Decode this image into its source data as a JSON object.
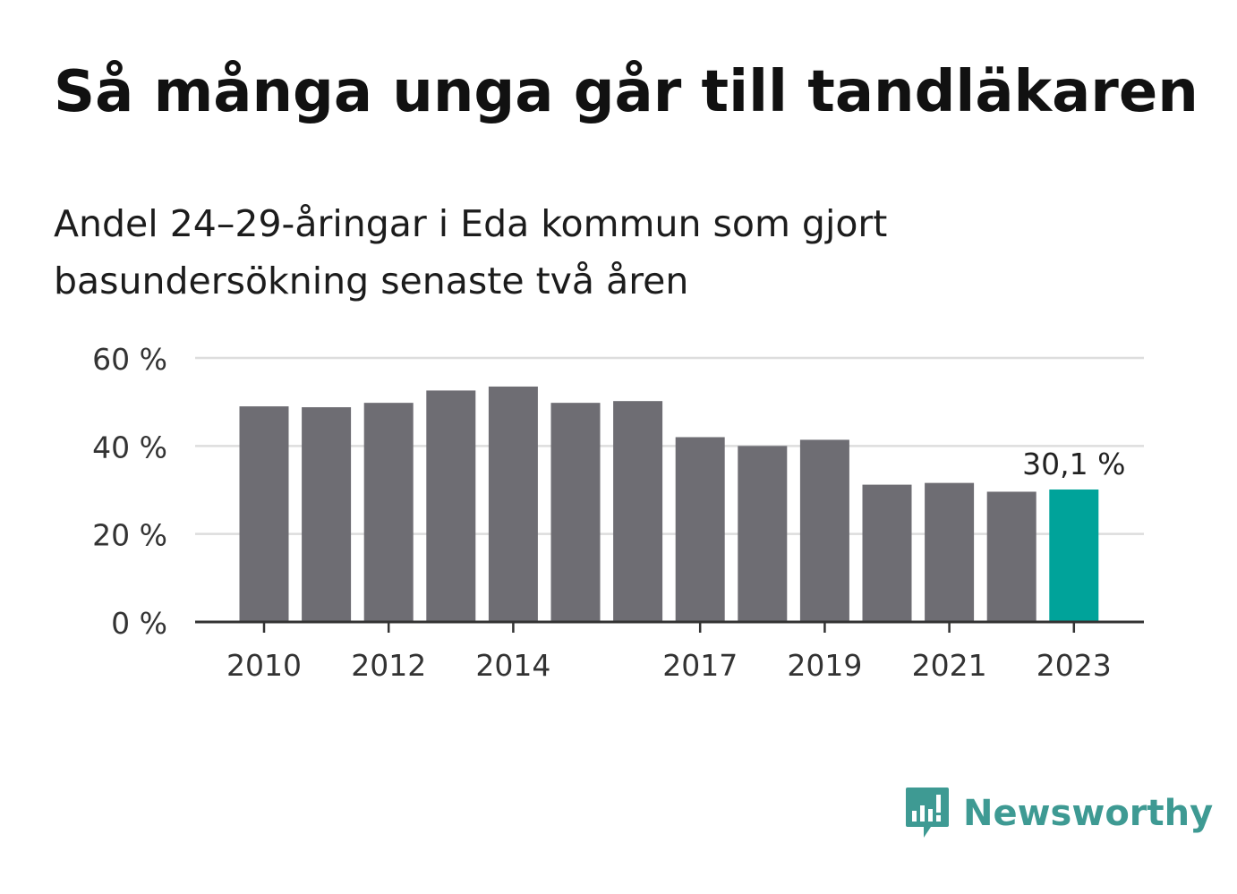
{
  "title": "Så många unga går till tandläkaren",
  "subtitle": "Andel 24–29-åringar i Eda kommun som gjort basundersökning senaste två åren",
  "brand": {
    "name": "Newsworthy",
    "color": "#3e9a93",
    "icon": "newsworthy-logo-icon"
  },
  "colors": {
    "bar": "#6e6d73",
    "highlight": "#00a39a",
    "grid": "#dddddd",
    "axis": "#333333"
  },
  "chart_data": {
    "type": "bar",
    "categories": [
      "2010",
      "2011",
      "2012",
      "2013",
      "2014",
      "2015",
      "2016",
      "2017",
      "2018",
      "2019",
      "2020",
      "2021",
      "2022",
      "2023"
    ],
    "tick_labels": [
      "2010",
      "2012",
      "2014",
      "2017",
      "2019",
      "2021",
      "2023"
    ],
    "values": [
      49.0,
      48.8,
      49.8,
      52.6,
      53.5,
      49.8,
      50.2,
      42.0,
      40.0,
      41.4,
      31.2,
      31.6,
      29.6,
      30.1
    ],
    "highlight_index": 13,
    "highlight_label": "30,1 %",
    "ylim": [
      0,
      60
    ],
    "yticks": [
      0,
      20,
      40,
      60
    ],
    "ytick_labels": [
      "0 %",
      "20 %",
      "40 %",
      "60 %"
    ],
    "grid": true
  }
}
